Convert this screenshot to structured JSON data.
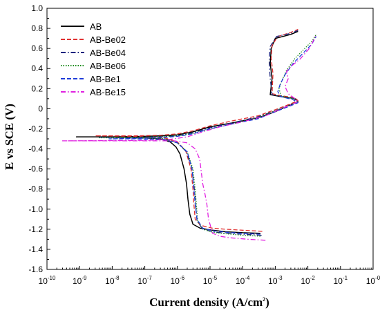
{
  "chart_data": {
    "type": "line",
    "xlabel": "Current density (A/cm",
    "xlabel_sup": "2",
    "xlabel_suffix": ")",
    "ylabel": "E vs SCE (V)",
    "x_scale": "log",
    "xlim": [
      1e-10,
      1
    ],
    "ylim": [
      -1.6,
      1.0
    ],
    "grid": false,
    "legend_position": "top-left",
    "x_ticks": [
      {
        "base": "10",
        "exp": "-10",
        "value": 1e-10
      },
      {
        "base": "10",
        "exp": "-9",
        "value": 1e-09
      },
      {
        "base": "10",
        "exp": "-8",
        "value": 1e-08
      },
      {
        "base": "10",
        "exp": "-7",
        "value": 1e-07
      },
      {
        "base": "10",
        "exp": "-6",
        "value": 1e-06
      },
      {
        "base": "10",
        "exp": "-5",
        "value": 1e-05
      },
      {
        "base": "10",
        "exp": "-4",
        "value": 0.0001
      },
      {
        "base": "10",
        "exp": "-3",
        "value": 0.001
      },
      {
        "base": "10",
        "exp": "-2",
        "value": 0.01
      },
      {
        "base": "10",
        "exp": "-1",
        "value": 0.1
      },
      {
        "base": "10",
        "exp": "-0",
        "value": 1
      }
    ],
    "y_ticks": [
      {
        "label": "1.0",
        "value": 1.0
      },
      {
        "label": "0.8",
        "value": 0.8
      },
      {
        "label": "0.6",
        "value": 0.6
      },
      {
        "label": "0.4",
        "value": 0.4
      },
      {
        "label": "0.2",
        "value": 0.2
      },
      {
        "label": "0",
        "value": 0
      },
      {
        "label": "-0.2",
        "value": -0.2
      },
      {
        "label": "-0.4",
        "value": -0.4
      },
      {
        "label": "-0.6",
        "value": -0.6
      },
      {
        "label": "-0.8",
        "value": -0.8
      },
      {
        "label": "-1.0",
        "value": -1.0
      },
      {
        "label": "-1.2",
        "value": -1.2
      },
      {
        "label": "-1.4",
        "value": -1.4
      },
      {
        "label": "-1.6",
        "value": -1.6
      }
    ],
    "series": [
      {
        "name": "AB",
        "color": "#000000",
        "dash": "solid",
        "points": [
          [
            0.00035,
            -1.24
          ],
          [
            0.0001,
            -1.235
          ],
          [
            3e-05,
            -1.225
          ],
          [
            1.2e-05,
            -1.21
          ],
          [
            5e-06,
            -1.19
          ],
          [
            3e-06,
            -1.15
          ],
          [
            2.4e-06,
            -1.05
          ],
          [
            2.1e-06,
            -0.9
          ],
          [
            1.9e-06,
            -0.75
          ],
          [
            1.6e-06,
            -0.6
          ],
          [
            1.2e-06,
            -0.45
          ],
          [
            9e-07,
            -0.38
          ],
          [
            6e-07,
            -0.33
          ],
          [
            3e-07,
            -0.3
          ],
          [
            5e-08,
            -0.285
          ],
          [
            1e-08,
            -0.28
          ],
          [
            8e-10,
            -0.28
          ],
          [
            1e-08,
            -0.28
          ],
          [
            1e-07,
            -0.275
          ],
          [
            3e-07,
            -0.27
          ],
          [
            1e-06,
            -0.26
          ],
          [
            3e-06,
            -0.23
          ],
          [
            1e-05,
            -0.18
          ],
          [
            5e-05,
            -0.14
          ],
          [
            0.0003,
            -0.09
          ],
          [
            0.001,
            -0.03
          ],
          [
            0.0025,
            0.03
          ],
          [
            0.005,
            0.07
          ],
          [
            0.004,
            0.1
          ],
          [
            0.0015,
            0.12
          ],
          [
            0.0007,
            0.14
          ],
          [
            0.0008,
            0.3
          ],
          [
            0.0007,
            0.45
          ],
          [
            0.00075,
            0.6
          ],
          [
            0.001,
            0.7
          ],
          [
            0.003,
            0.74
          ],
          [
            0.005,
            0.77
          ]
        ]
      },
      {
        "name": "AB-Be02",
        "color": "#e03030",
        "dash": "dashed",
        "points": [
          [
            0.0004,
            -1.22
          ],
          [
            0.0001,
            -1.21
          ],
          [
            3e-05,
            -1.2
          ],
          [
            1.2e-05,
            -1.19
          ],
          [
            5e-06,
            -1.16
          ],
          [
            3.5e-06,
            -1.1
          ],
          [
            3.2e-06,
            -0.95
          ],
          [
            3e-06,
            -0.8
          ],
          [
            2.6e-06,
            -0.6
          ],
          [
            1.8e-06,
            -0.42
          ],
          [
            1e-06,
            -0.33
          ],
          [
            4e-07,
            -0.29
          ],
          [
            5e-08,
            -0.275
          ],
          [
            3e-09,
            -0.27
          ],
          [
            5e-08,
            -0.27
          ],
          [
            3e-07,
            -0.265
          ],
          [
            1e-06,
            -0.25
          ],
          [
            3e-06,
            -0.22
          ],
          [
            1e-05,
            -0.17
          ],
          [
            5e-05,
            -0.12
          ],
          [
            0.0003,
            -0.07
          ],
          [
            0.001,
            -0.01
          ],
          [
            0.0025,
            0.04
          ],
          [
            0.005,
            0.08
          ],
          [
            0.004,
            0.11
          ],
          [
            0.0015,
            0.13
          ],
          [
            0.0008,
            0.15
          ],
          [
            0.00085,
            0.35
          ],
          [
            0.00075,
            0.5
          ],
          [
            0.0008,
            0.63
          ],
          [
            0.0012,
            0.72
          ],
          [
            0.003,
            0.76
          ],
          [
            0.005,
            0.79
          ]
        ]
      },
      {
        "name": "AB-Be04",
        "color": "#1a237e",
        "dash": "dashdot",
        "points": [
          [
            0.00038,
            -1.26
          ],
          [
            0.0001,
            -1.25
          ],
          [
            3e-05,
            -1.24
          ],
          [
            1.2e-05,
            -1.225
          ],
          [
            6e-06,
            -1.2
          ],
          [
            4e-06,
            -1.12
          ],
          [
            3.6e-06,
            -0.95
          ],
          [
            3.3e-06,
            -0.8
          ],
          [
            2.8e-06,
            -0.6
          ],
          [
            1.9e-06,
            -0.43
          ],
          [
            1e-06,
            -0.34
          ],
          [
            4e-07,
            -0.3
          ],
          [
            5e-08,
            -0.29
          ],
          [
            4e-09,
            -0.285
          ],
          [
            5e-08,
            -0.285
          ],
          [
            3e-07,
            -0.28
          ],
          [
            1e-06,
            -0.27
          ],
          [
            3e-06,
            -0.24
          ],
          [
            1e-05,
            -0.19
          ],
          [
            5e-05,
            -0.14
          ],
          [
            0.0003,
            -0.08
          ],
          [
            0.001,
            -0.02
          ],
          [
            0.0025,
            0.03
          ],
          [
            0.005,
            0.07
          ],
          [
            0.004,
            0.1
          ],
          [
            0.0015,
            0.12
          ],
          [
            0.0008,
            0.14
          ],
          [
            0.0007,
            0.3
          ],
          [
            0.00065,
            0.48
          ],
          [
            0.0007,
            0.62
          ],
          [
            0.0011,
            0.72
          ],
          [
            0.003,
            0.75
          ],
          [
            0.005,
            0.78
          ]
        ]
      },
      {
        "name": "AB-Be06",
        "color": "#1a8a1a",
        "dash": "dotted",
        "points": [
          [
            0.00035,
            -1.27
          ],
          [
            0.0001,
            -1.26
          ],
          [
            3e-05,
            -1.245
          ],
          [
            1.2e-05,
            -1.23
          ],
          [
            6e-06,
            -1.2
          ],
          [
            4.2e-06,
            -1.12
          ],
          [
            3.8e-06,
            -0.95
          ],
          [
            3.5e-06,
            -0.8
          ],
          [
            3e-06,
            -0.6
          ],
          [
            2e-06,
            -0.43
          ],
          [
            1e-06,
            -0.34
          ],
          [
            4e-07,
            -0.3
          ],
          [
            5e-08,
            -0.29
          ],
          [
            4e-09,
            -0.29
          ],
          [
            5e-08,
            -0.285
          ],
          [
            3e-07,
            -0.28
          ],
          [
            1e-06,
            -0.27
          ],
          [
            3e-06,
            -0.245
          ],
          [
            1e-05,
            -0.2
          ],
          [
            5e-05,
            -0.15
          ],
          [
            0.0003,
            -0.09
          ],
          [
            0.001,
            -0.02
          ],
          [
            0.0025,
            0.03
          ],
          [
            0.005,
            0.07
          ],
          [
            0.0035,
            0.1
          ],
          [
            0.0015,
            0.13
          ],
          [
            0.0013,
            0.2
          ],
          [
            0.0016,
            0.28
          ],
          [
            0.0022,
            0.38
          ],
          [
            0.004,
            0.5
          ],
          [
            0.008,
            0.6
          ],
          [
            0.014,
            0.68
          ],
          [
            0.018,
            0.74
          ]
        ]
      },
      {
        "name": "AB-Be1",
        "color": "#1e3cd8",
        "dash": "dashed",
        "points": [
          [
            0.00035,
            -1.25
          ],
          [
            0.0001,
            -1.24
          ],
          [
            3e-05,
            -1.23
          ],
          [
            1.2e-05,
            -1.215
          ],
          [
            6e-06,
            -1.19
          ],
          [
            4e-06,
            -1.1
          ],
          [
            3.5e-06,
            -0.95
          ],
          [
            3.2e-06,
            -0.8
          ],
          [
            2.8e-06,
            -0.6
          ],
          [
            2e-06,
            -0.43
          ],
          [
            1e-06,
            -0.34
          ],
          [
            4e-07,
            -0.31
          ],
          [
            5e-08,
            -0.3
          ],
          [
            8e-09,
            -0.3
          ],
          [
            5e-08,
            -0.295
          ],
          [
            3e-07,
            -0.29
          ],
          [
            1e-06,
            -0.275
          ],
          [
            3e-06,
            -0.25
          ],
          [
            1e-05,
            -0.2
          ],
          [
            5e-05,
            -0.15
          ],
          [
            0.0003,
            -0.1
          ],
          [
            0.001,
            -0.03
          ],
          [
            0.0025,
            0.02
          ],
          [
            0.005,
            0.06
          ],
          [
            0.0035,
            0.09
          ],
          [
            0.0015,
            0.12
          ],
          [
            0.0012,
            0.17
          ],
          [
            0.0014,
            0.24
          ],
          [
            0.002,
            0.34
          ],
          [
            0.0035,
            0.45
          ],
          [
            0.007,
            0.55
          ],
          [
            0.013,
            0.64
          ],
          [
            0.018,
            0.72
          ]
        ]
      },
      {
        "name": "AB-Be15",
        "color": "#e020e0",
        "dash": "dashdot",
        "points": [
          [
            0.0005,
            -1.31
          ],
          [
            0.00015,
            -1.3
          ],
          [
            4e-05,
            -1.285
          ],
          [
            2e-05,
            -1.27
          ],
          [
            1.2e-05,
            -1.24
          ],
          [
            9e-06,
            -1.1
          ],
          [
            8e-06,
            -0.95
          ],
          [
            7e-06,
            -0.85
          ],
          [
            6e-06,
            -0.75
          ],
          [
            5.5e-06,
            -0.65
          ],
          [
            4.8e-06,
            -0.5
          ],
          [
            3.5e-06,
            -0.4
          ],
          [
            2e-06,
            -0.34
          ],
          [
            8e-07,
            -0.32
          ],
          [
            1e-07,
            -0.32
          ],
          [
            3e-10,
            -0.32
          ],
          [
            1e-07,
            -0.315
          ],
          [
            6e-07,
            -0.305
          ],
          [
            2e-06,
            -0.28
          ],
          [
            6e-06,
            -0.23
          ],
          [
            2e-05,
            -0.18
          ],
          [
            0.0001,
            -0.13
          ],
          [
            0.0005,
            -0.07
          ],
          [
            0.0015,
            0.0
          ],
          [
            0.003,
            0.04
          ],
          [
            0.005,
            0.07
          ],
          [
            0.004,
            0.1
          ],
          [
            0.0025,
            0.15
          ],
          [
            0.002,
            0.22
          ],
          [
            0.0025,
            0.3
          ],
          [
            0.0022,
            0.37
          ],
          [
            0.003,
            0.42
          ],
          [
            0.006,
            0.5
          ],
          [
            0.011,
            0.6
          ],
          [
            0.016,
            0.7
          ],
          [
            0.018,
            0.74
          ]
        ]
      }
    ]
  }
}
